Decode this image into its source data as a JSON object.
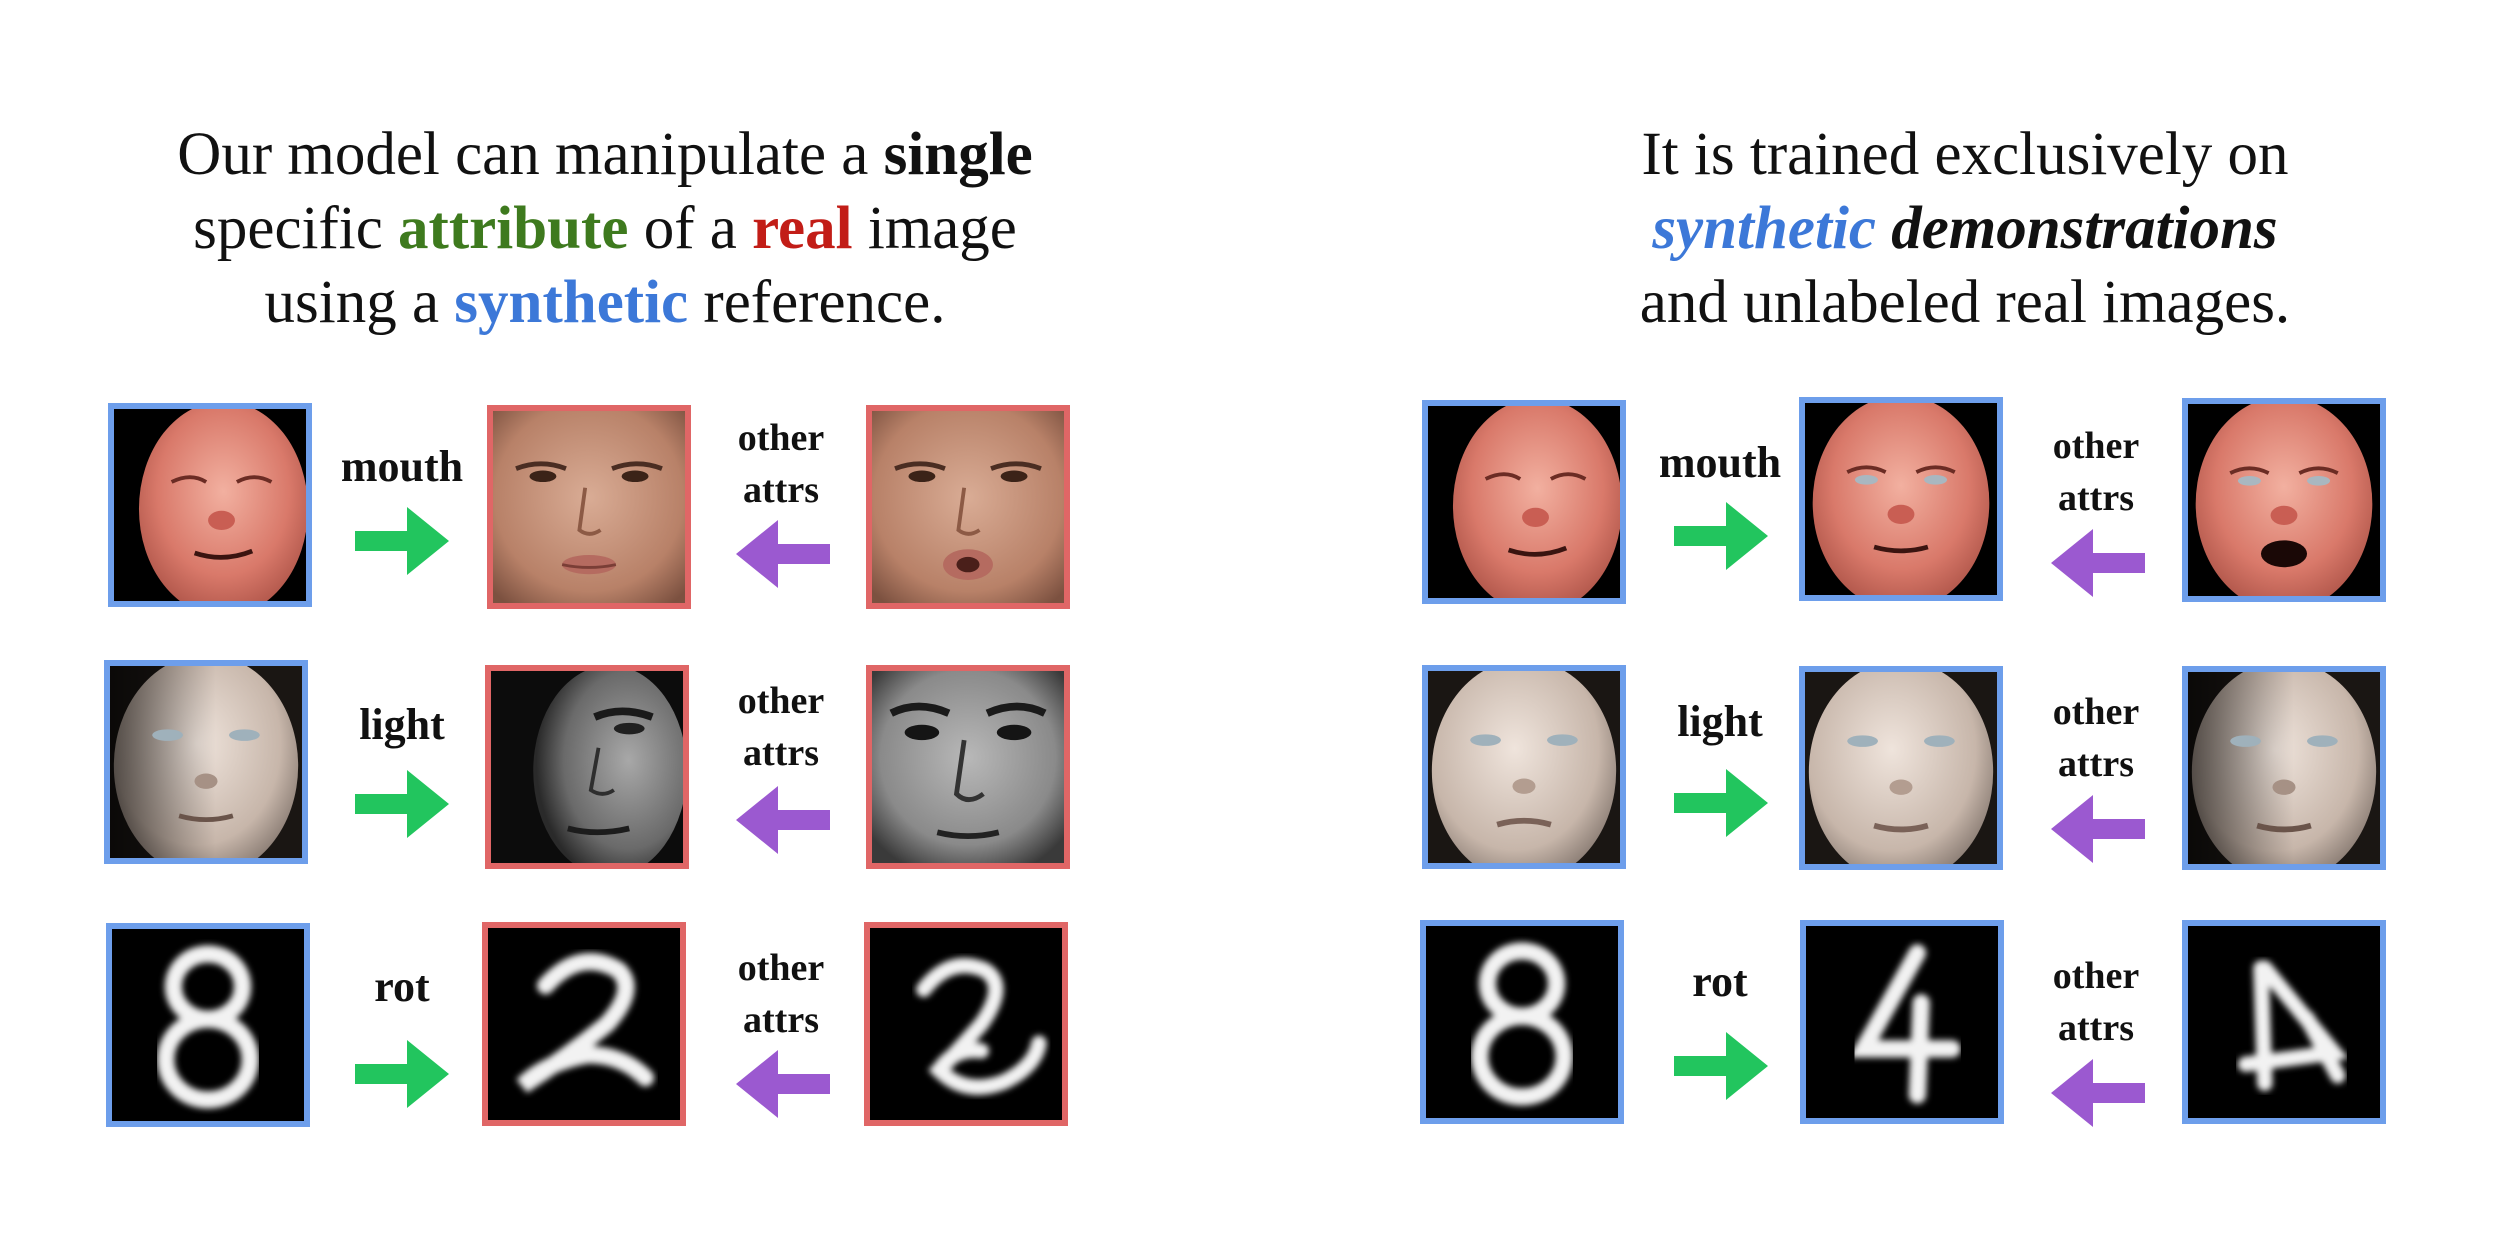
{
  "left": {
    "caption": {
      "l1_a": "Our model can manipulate a ",
      "l1_b": "single",
      "l2_a": "specific ",
      "l2_b": "attribute",
      "l2_c": " of a ",
      "l2_d": "real",
      "l2_e": " image",
      "l3_a": "using a ",
      "l3_b": "synthetic",
      "l3_c": " reference."
    },
    "rows": [
      {
        "attribute": "mouth",
        "other_l1": "other",
        "other_l2": "attrs"
      },
      {
        "attribute": "light",
        "other_l1": "other",
        "other_l2": "attrs"
      },
      {
        "attribute": "rot",
        "other_l1": "other",
        "other_l2": "attrs"
      }
    ]
  },
  "right": {
    "caption": {
      "l1": "It is trained exclusively on",
      "l2_a": "synthetic",
      "l2_b": " ",
      "l2_c": "demonstrations",
      "l3": "and unlabeled real images."
    },
    "rows": [
      {
        "attribute": "mouth",
        "other_l1": "other",
        "other_l2": "attrs"
      },
      {
        "attribute": "light",
        "other_l1": "other",
        "other_l2": "attrs"
      },
      {
        "attribute": "rot",
        "other_l1": "other",
        "other_l2": "attrs"
      }
    ]
  },
  "colors": {
    "synthetic_border": "#6d9eeb",
    "real_border": "#e06666",
    "attribute_arrow": "#22c55e",
    "other_attrs_arrow": "#9b59d0",
    "attribute_text": "#3e7a1e",
    "real_text": "#c21d17",
    "synthetic_text": "#3c78d8"
  },
  "icons": {
    "attribute_arrow": "arrow-right-icon",
    "other_attrs_arrow": "arrow-left-icon"
  }
}
